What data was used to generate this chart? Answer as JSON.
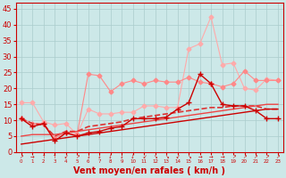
{
  "background_color": "#cce8e8",
  "grid_color": "#aacccc",
  "xlabel": "Vent moyen/en rafales ( km/h )",
  "xlabel_color": "#cc0000",
  "xlabel_fontsize": 7,
  "xtick_color": "#cc0000",
  "ytick_color": "#cc0000",
  "ylim": [
    0,
    47
  ],
  "yticks": [
    0,
    5,
    10,
    15,
    20,
    25,
    30,
    35,
    40,
    45
  ],
  "x": [
    0,
    1,
    2,
    3,
    4,
    5,
    6,
    7,
    8,
    9,
    10,
    11,
    12,
    13,
    14,
    15,
    16,
    17,
    18,
    19,
    20,
    21,
    22,
    23
  ],
  "series": [
    {
      "name": "light_pink_high",
      "y": [
        15.5,
        15.5,
        9.5,
        8.5,
        9.0,
        5.5,
        13.5,
        12.0,
        12.0,
        12.5,
        12.5,
        14.5,
        14.5,
        14.0,
        14.0,
        32.5,
        34.0,
        42.5,
        27.5,
        28.0,
        20.0,
        19.5,
        23.0,
        22.5
      ],
      "color": "#ffaaaa",
      "marker": "D",
      "markersize": 2.5,
      "linewidth": 0.8,
      "zorder": 2
    },
    {
      "name": "medium_pink_bumpy",
      "y": [
        10.5,
        9.0,
        9.0,
        4.5,
        6.0,
        5.5,
        24.5,
        24.0,
        19.0,
        21.5,
        22.5,
        21.5,
        22.5,
        22.0,
        22.0,
        23.5,
        22.0,
        21.5,
        20.5,
        21.5,
        25.5,
        22.5,
        22.5,
        22.5
      ],
      "color": "#ff8888",
      "marker": "D",
      "markersize": 2.5,
      "linewidth": 0.8,
      "zorder": 3
    },
    {
      "name": "dark_red_peaked",
      "y": [
        10.5,
        8.0,
        9.0,
        3.5,
        6.0,
        5.0,
        6.0,
        6.5,
        7.5,
        8.0,
        10.5,
        10.5,
        10.5,
        11.0,
        13.5,
        15.5,
        24.5,
        21.5,
        15.0,
        14.5,
        14.5,
        13.0,
        10.5,
        10.5
      ],
      "color": "#cc0000",
      "marker": "+",
      "markersize": 4,
      "linewidth": 1.0,
      "zorder": 5
    },
    {
      "name": "trend_upper_dashed",
      "y": [
        10.5,
        9.0,
        8.5,
        5.0,
        6.5,
        6.5,
        8.0,
        8.5,
        9.0,
        9.5,
        10.5,
        11.0,
        11.5,
        12.0,
        12.5,
        13.0,
        13.5,
        14.0,
        14.0,
        14.5,
        14.5,
        14.5,
        13.5,
        13.5
      ],
      "color": "#dd3333",
      "marker": null,
      "linewidth": 1.2,
      "zorder": 4,
      "linestyle": "--"
    },
    {
      "name": "trend_lower_solid",
      "y": [
        2.5,
        3.0,
        3.5,
        4.0,
        4.5,
        5.0,
        5.5,
        6.0,
        6.5,
        7.0,
        7.5,
        8.0,
        8.5,
        9.0,
        9.5,
        10.0,
        10.5,
        11.0,
        11.5,
        12.0,
        12.5,
        13.0,
        13.5,
        13.5
      ],
      "color": "#cc0000",
      "marker": null,
      "linewidth": 1.0,
      "zorder": 4,
      "linestyle": "-"
    },
    {
      "name": "trend_middle_solid",
      "y": [
        5.0,
        5.5,
        5.5,
        5.5,
        6.0,
        6.5,
        7.0,
        7.5,
        8.0,
        8.5,
        9.0,
        9.5,
        10.0,
        10.5,
        11.0,
        11.5,
        12.0,
        12.5,
        13.0,
        13.5,
        14.0,
        14.5,
        15.0,
        15.0
      ],
      "color": "#ee4444",
      "marker": null,
      "linewidth": 1.0,
      "zorder": 4,
      "linestyle": "-"
    }
  ],
  "wind_arrows": [
    "↗",
    "→",
    "↑",
    "↑",
    "↙",
    "↗",
    "↓",
    "↓",
    "↓",
    "↓",
    "↓",
    "↙",
    "↘",
    "↘",
    "↙",
    "↘",
    "→",
    "→",
    "→",
    "↗",
    "↗",
    "↗",
    "↗",
    "↗"
  ]
}
